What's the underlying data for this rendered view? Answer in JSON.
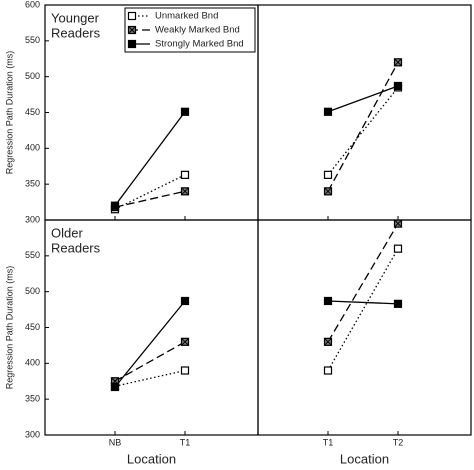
{
  "chart_data": [
    {
      "type": "line",
      "annotation": [
        "Younger",
        "Readers"
      ],
      "ylabel": "Regression Path Duration (ms)",
      "categories": [
        null,
        null
      ],
      "ylim": [
        300,
        600
      ],
      "yticks": [
        300,
        350,
        400,
        450,
        500,
        550,
        600
      ],
      "legend": "top-right",
      "series": [
        {
          "name": "Unmarked Bnd",
          "color": "#000000",
          "line_style": "dotted",
          "marker": "open",
          "values": [
            315,
            363
          ]
        },
        {
          "name": "Weakly Marked Bnd",
          "color": "#000000",
          "line_style": "dashed",
          "marker": "hatched",
          "values": [
            318,
            340
          ]
        },
        {
          "name": "Strongly Marked Bnd",
          "color": "#000000",
          "line_style": "solid",
          "marker": "filled",
          "values": [
            320,
            451
          ]
        }
      ]
    },
    {
      "type": "line",
      "categories": [
        null,
        null
      ],
      "ylim": [
        300,
        600
      ],
      "series": [
        {
          "color": "#000000",
          "line_style": "dotted",
          "marker": "open",
          "values": [
            363,
            485
          ]
        },
        {
          "color": "#000000",
          "line_style": "dashed",
          "marker": "hatched",
          "values": [
            340,
            520
          ]
        },
        {
          "color": "#000000",
          "line_style": "solid",
          "marker": "filled",
          "values": [
            451,
            487
          ]
        }
      ]
    },
    {
      "type": "line",
      "annotation": [
        "Older",
        "Readers"
      ],
      "ylabel": "Regression Path Duration (ms)",
      "xlabel": "Location",
      "categories": [
        "NB",
        "T1"
      ],
      "ylim": [
        300,
        600
      ],
      "yticks": [
        300,
        350,
        400,
        450,
        500,
        550
      ],
      "series": [
        {
          "color": "#000000",
          "line_style": "dotted",
          "marker": "open",
          "values": [
            368,
            390
          ]
        },
        {
          "color": "#000000",
          "line_style": "dashed",
          "marker": "hatched",
          "values": [
            375,
            430
          ]
        },
        {
          "color": "#000000",
          "line_style": "solid",
          "marker": "filled",
          "values": [
            367,
            487
          ]
        }
      ]
    },
    {
      "type": "line",
      "xlabel": "Location",
      "categories": [
        "T1",
        "T2"
      ],
      "ylim": [
        300,
        600
      ],
      "series": [
        {
          "color": "#000000",
          "line_style": "dotted",
          "marker": "open",
          "values": [
            390,
            560
          ]
        },
        {
          "color": "#000000",
          "line_style": "dashed",
          "marker": "hatched",
          "values": [
            430,
            595
          ]
        },
        {
          "color": "#000000",
          "line_style": "solid",
          "marker": "filled",
          "values": [
            487,
            483
          ]
        }
      ]
    }
  ]
}
